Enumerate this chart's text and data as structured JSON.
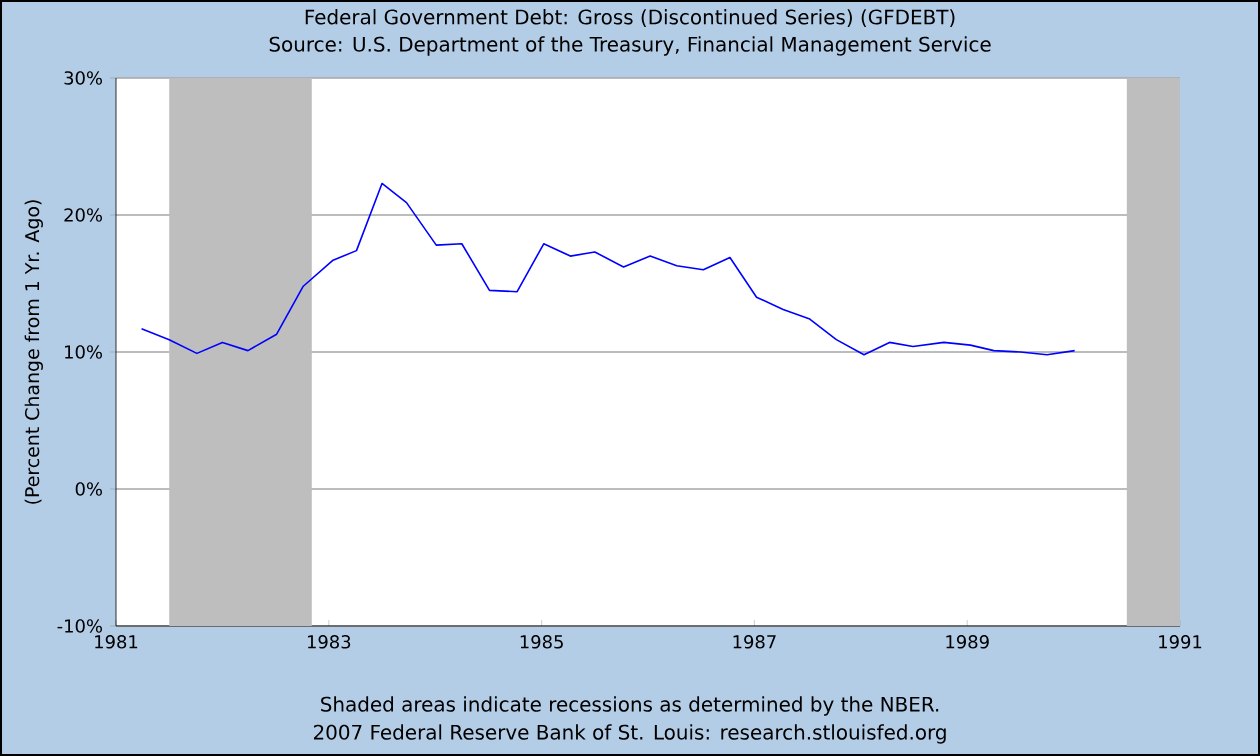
{
  "chart_data": {
    "type": "line",
    "title": "Federal Government Debt: Gross (Discontinued Series) (GFDEBT)",
    "subtitle": "Source: U.S. Department of the Treasury, Financial Management Service",
    "ylabel": "(Percent Change from 1 Yr. Ago)",
    "x": [
      1981.24,
      1981.5,
      1981.76,
      1982.0,
      1982.24,
      1982.51,
      1982.76,
      1983.04,
      1983.26,
      1983.5,
      1983.73,
      1984.01,
      1984.25,
      1984.51,
      1984.77,
      1985.02,
      1985.27,
      1985.5,
      1985.77,
      1986.02,
      1986.27,
      1986.52,
      1986.77,
      1987.02,
      1987.27,
      1987.52,
      1987.77,
      1988.03,
      1988.27,
      1988.49,
      1988.78,
      1989.03,
      1989.25,
      1989.5,
      1989.75,
      1990.01
    ],
    "series": [
      {
        "color": "#0000ff",
        "values": [
          11.7,
          10.9,
          9.9,
          10.7,
          10.1,
          11.3,
          14.8,
          16.7,
          17.4,
          22.3,
          20.9,
          17.8,
          17.9,
          14.5,
          14.4,
          17.9,
          17.0,
          17.3,
          16.2,
          17.0,
          16.3,
          16.0,
          16.9,
          14.0,
          13.1,
          12.4,
          10.9,
          9.8,
          10.7,
          10.4,
          10.7,
          10.5,
          10.1,
          10.0,
          9.8,
          10.1
        ]
      }
    ],
    "xlim": [
      1981,
      1991
    ],
    "xticks": [
      1981,
      1983,
      1985,
      1987,
      1989,
      1991
    ],
    "ylim": [
      -10,
      30
    ],
    "yticks": [
      {
        "value": -10,
        "label": "-10%"
      },
      {
        "value": 0,
        "label": "0%"
      },
      {
        "value": 10,
        "label": "10%"
      },
      {
        "value": 20,
        "label": "20%"
      },
      {
        "value": 30,
        "label": "30%"
      }
    ],
    "bands": [
      {
        "axis": "x",
        "from": 1981.5,
        "to": 1982.84,
        "color": "#bebebe"
      },
      {
        "axis": "x",
        "from": 1990.5,
        "to": 1991,
        "color": "#bebebe"
      }
    ],
    "grid": "y",
    "marker": "none",
    "line_style": "solid",
    "annotations": [
      "Shaded areas indicate recessions as determined by the NBER.",
      "2007 Federal Reserve Bank of St. Louis: research.stlouisfed.org"
    ]
  }
}
